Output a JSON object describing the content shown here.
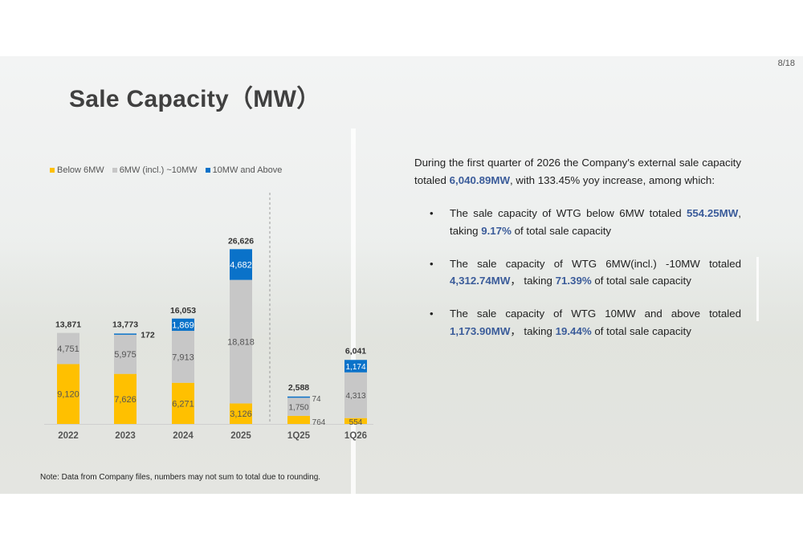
{
  "page_number": "8/18",
  "title": "Sale Capacity（MW）",
  "colors": {
    "below6": "#ffc000",
    "mid": "#c7c7c7",
    "above10": "#0a72c9",
    "highlight": "#3b5c9a"
  },
  "legend": [
    {
      "label": "Below 6MW",
      "color": "#ffc000"
    },
    {
      "label": "6MW (incl.) ~10MW",
      "color": "#c7c7c7"
    },
    {
      "label": "10MW and Above",
      "color": "#0a72c9"
    }
  ],
  "chart_data": {
    "type": "bar",
    "stacked": true,
    "categories": [
      "2022",
      "2023",
      "2024",
      "2025",
      "1Q25",
      "1Q26"
    ],
    "series": [
      {
        "name": "Below 6MW",
        "values": [
          9120,
          7626,
          6271,
          3126,
          764,
          554
        ]
      },
      {
        "name": "6MW (incl.) ~10MW",
        "values": [
          4751,
          5975,
          7913,
          18818,
          1750,
          4313
        ]
      },
      {
        "name": "10MW and Above",
        "values": [
          0,
          172,
          1869,
          4682,
          74,
          1174
        ]
      }
    ],
    "series_labels": [
      [
        "9,120",
        "7,626",
        "6,271",
        "3,126",
        "764",
        "554"
      ],
      [
        "4,751",
        "5,975",
        "7,913",
        "18,818",
        "1,750",
        "4,313"
      ],
      [
        "",
        "172",
        "1,869",
        "4,682",
        "74",
        "1,174"
      ]
    ],
    "totals": [
      13871,
      13773,
      16053,
      26626,
      2588,
      6041
    ],
    "total_labels": [
      "13,871",
      "13,773",
      "16,053",
      "26,626",
      "2,588",
      "6,041"
    ],
    "title": "",
    "xlabel": "",
    "ylabel": "",
    "legend_position": "top-left",
    "grid": false,
    "divider_after_category": "2025"
  },
  "summary": {
    "intro_before": "During the first quarter of 2026 the Company's external sale capacity totaled ",
    "intro_value": "6,040.89MW",
    "intro_after": ", with 133.45% yoy increase, among which:",
    "bullets": [
      {
        "prefix": "The sale capacity of WTG below 6MW totaled ",
        "value": "554.25MW",
        "middle": ", taking ",
        "pct": "9.17%",
        "suffix": " of total sale capacity"
      },
      {
        "prefix": "The sale capacity of WTG 6MW(incl.) -10MW totaled ",
        "value": "4,312.74MW",
        "middle": "， taking ",
        "pct": "71.39%",
        "suffix": " of total sale capacity"
      },
      {
        "prefix": "The sale capacity of WTG 10MW and above totaled ",
        "value": "1,173.90MW",
        "middle": "， taking ",
        "pct": "19.44%",
        "suffix": " of total sale capacity"
      }
    ]
  },
  "note": "Note: Data from Company files, numbers may not sum to total due to rounding."
}
